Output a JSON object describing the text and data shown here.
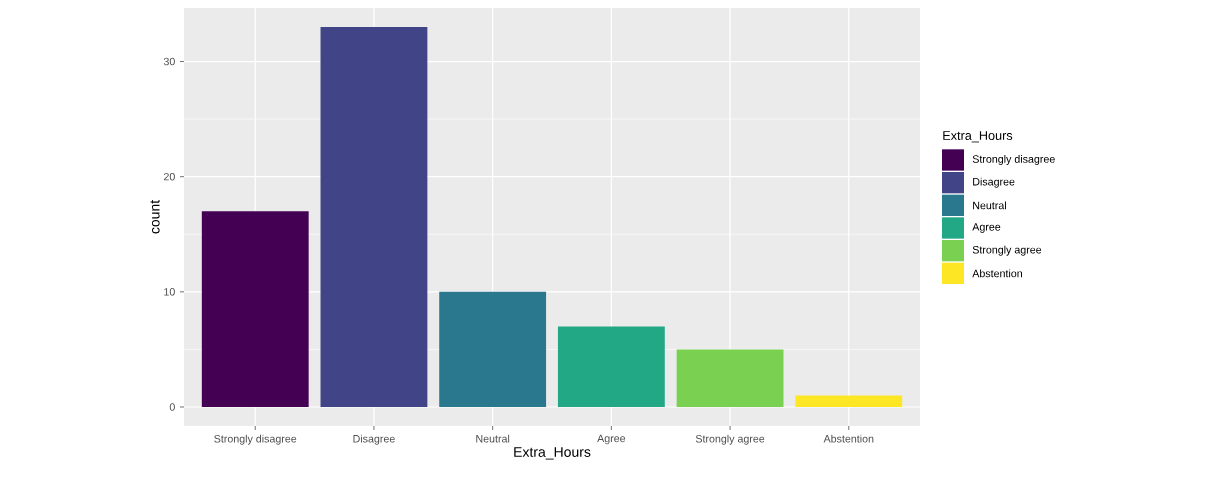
{
  "chart_data": {
    "type": "bar",
    "xlabel": "Extra_Hours",
    "ylabel": "count",
    "legend_title": "Extra_Hours",
    "categories": [
      "Strongly disagree",
      "Disagree",
      "Neutral",
      "Agree",
      "Strongly agree",
      "Abstention"
    ],
    "series": [
      {
        "name": "Strongly disagree",
        "color": "#440154",
        "values": [
          17,
          null,
          null,
          null,
          null,
          null
        ]
      },
      {
        "name": "Disagree",
        "color": "#414487",
        "values": [
          null,
          33,
          null,
          null,
          null,
          null
        ]
      },
      {
        "name": "Neutral",
        "color": "#2a788e",
        "values": [
          null,
          null,
          10,
          null,
          null,
          null
        ]
      },
      {
        "name": "Agree",
        "color": "#22a884",
        "values": [
          null,
          null,
          null,
          7,
          null,
          null
        ]
      },
      {
        "name": "Strongly agree",
        "color": "#7ad151",
        "values": [
          null,
          null,
          null,
          null,
          5,
          null
        ]
      },
      {
        "name": "Abstention",
        "color": "#fde725",
        "values": [
          null,
          null,
          null,
          null,
          null,
          1
        ]
      }
    ],
    "ylim": [
      -1.65,
      34.65
    ],
    "yticks": [
      0,
      10,
      20,
      30
    ],
    "grid": true,
    "legend": "right"
  }
}
